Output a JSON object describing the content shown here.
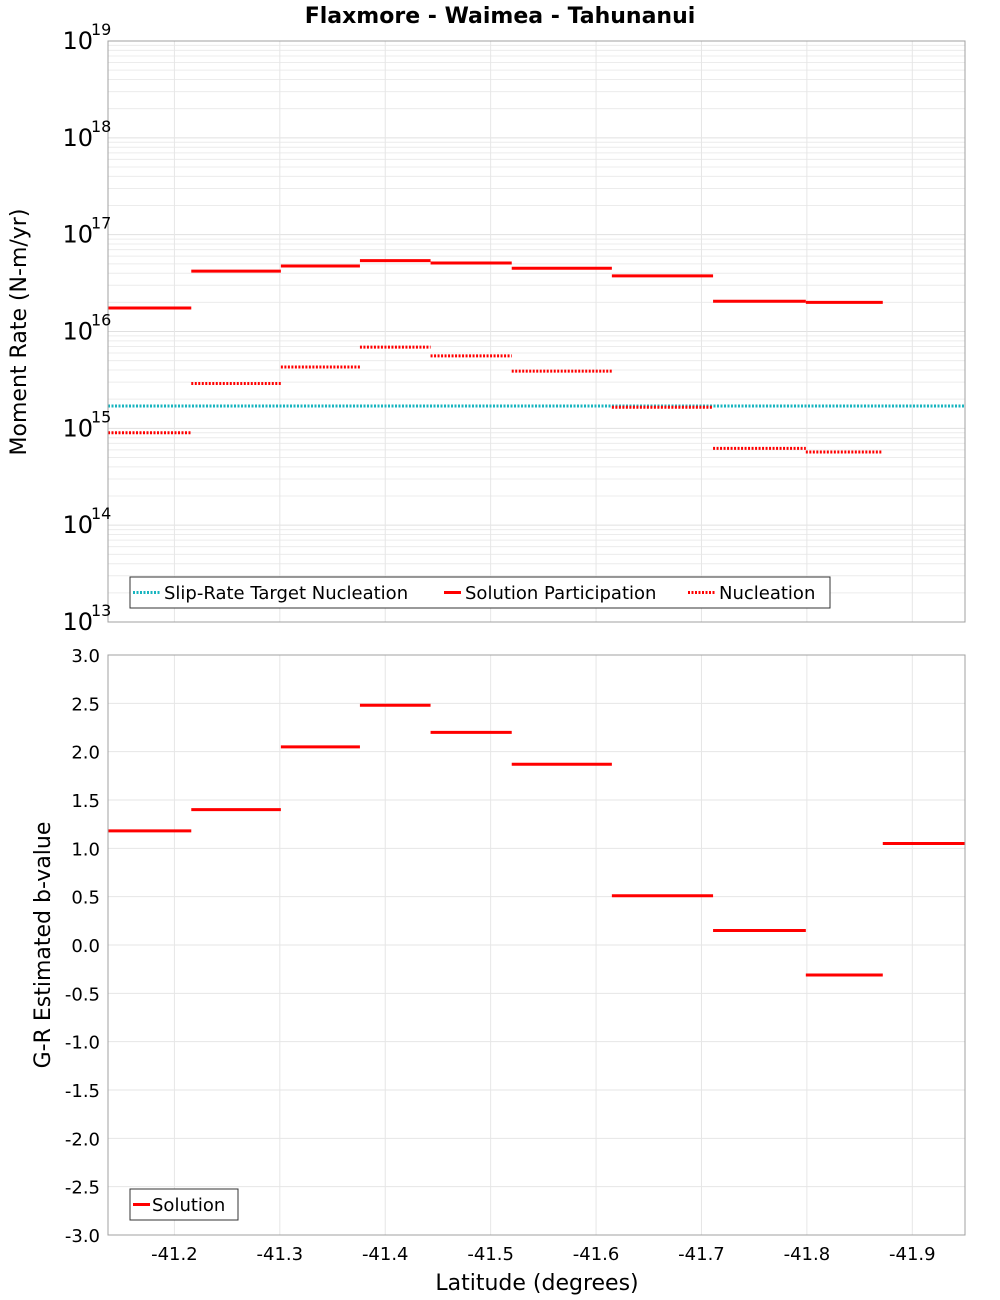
{
  "chart_data": [
    {
      "type": "line",
      "title": "Flaxmore - Waimea - Tahunanui",
      "ylabel": "Moment Rate (N-m/yr)",
      "yscale": "log",
      "ylim": [
        10000000000000.0,
        1e+19
      ],
      "xlim": [
        -41.137,
        -41.95
      ],
      "ytick_base": "10",
      "yticks_exponent": [
        "13",
        "14",
        "15",
        "16",
        "17",
        "18",
        "19"
      ],
      "grid": true,
      "legend": "bottom-left",
      "series": [
        {
          "name": "Slip-Rate Target Nucleation",
          "color": "#17b4bf",
          "style": "dotted",
          "segments": [
            {
              "x0": -41.137,
              "x1": -41.95,
              "y": 1700000000000000.0
            }
          ]
        },
        {
          "name": "Solution Participation",
          "color": "#ff0000",
          "style": "solid",
          "segments": [
            {
              "x0": -41.137,
              "x1": -41.216,
              "y": 1.75e+16
            },
            {
              "x0": -41.216,
              "x1": -41.301,
              "y": 4.2e+16
            },
            {
              "x0": -41.301,
              "x1": -41.376,
              "y": 4.75e+16
            },
            {
              "x0": -41.376,
              "x1": -41.443,
              "y": 5.4e+16
            },
            {
              "x0": -41.443,
              "x1": -41.52,
              "y": 5.1e+16
            },
            {
              "x0": -41.52,
              "x1": -41.615,
              "y": 4.5e+16
            },
            {
              "x0": -41.615,
              "x1": -41.711,
              "y": 3.75e+16
            },
            {
              "x0": -41.711,
              "x1": -41.799,
              "y": 2.05e+16
            },
            {
              "x0": -41.799,
              "x1": -41.872,
              "y": 2e+16
            }
          ]
        },
        {
          "name": "Nucleation",
          "color": "#ff0000",
          "style": "dotted",
          "segments": [
            {
              "x0": -41.137,
              "x1": -41.216,
              "y": 900000000000000.0
            },
            {
              "x0": -41.216,
              "x1": -41.301,
              "y": 2900000000000000.0
            },
            {
              "x0": -41.301,
              "x1": -41.376,
              "y": 4300000000000000.0
            },
            {
              "x0": -41.376,
              "x1": -41.443,
              "y": 6900000000000000.0
            },
            {
              "x0": -41.443,
              "x1": -41.52,
              "y": 5600000000000000.0
            },
            {
              "x0": -41.52,
              "x1": -41.615,
              "y": 3900000000000000.0
            },
            {
              "x0": -41.615,
              "x1": -41.711,
              "y": 1650000000000000.0
            },
            {
              "x0": -41.711,
              "x1": -41.799,
              "y": 620000000000000.0
            },
            {
              "x0": -41.799,
              "x1": -41.872,
              "y": 570000000000000.0
            }
          ]
        }
      ]
    },
    {
      "type": "line",
      "xlabel": "Latitude (degrees)",
      "ylabel": "G-R Estimated b-value",
      "ylim": [
        -3.0,
        3.0
      ],
      "xlim": [
        -41.137,
        -41.95
      ],
      "yticks": [
        "-3.0",
        "-2.5",
        "-2.0",
        "-1.5",
        "-1.0",
        "-0.5",
        "0.0",
        "0.5",
        "1.0",
        "1.5",
        "2.0",
        "2.5",
        "3.0"
      ],
      "xticks": [
        "-41.2",
        "-41.3",
        "-41.4",
        "-41.5",
        "-41.6",
        "-41.7",
        "-41.8",
        "-41.9"
      ],
      "grid": true,
      "legend": "bottom-left",
      "series": [
        {
          "name": "Solution",
          "color": "#ff0000",
          "style": "solid",
          "segments": [
            {
              "x0": -41.137,
              "x1": -41.216,
              "y": 1.18
            },
            {
              "x0": -41.216,
              "x1": -41.301,
              "y": 1.4
            },
            {
              "x0": -41.301,
              "x1": -41.376,
              "y": 2.05
            },
            {
              "x0": -41.376,
              "x1": -41.443,
              "y": 2.48
            },
            {
              "x0": -41.443,
              "x1": -41.52,
              "y": 2.2
            },
            {
              "x0": -41.52,
              "x1": -41.615,
              "y": 1.87
            },
            {
              "x0": -41.615,
              "x1": -41.711,
              "y": 0.51
            },
            {
              "x0": -41.711,
              "x1": -41.799,
              "y": 0.15
            },
            {
              "x0": -41.799,
              "x1": -41.872,
              "y": -0.31
            },
            {
              "x0": -41.872,
              "x1": -41.95,
              "y": 1.05
            }
          ]
        }
      ]
    }
  ]
}
